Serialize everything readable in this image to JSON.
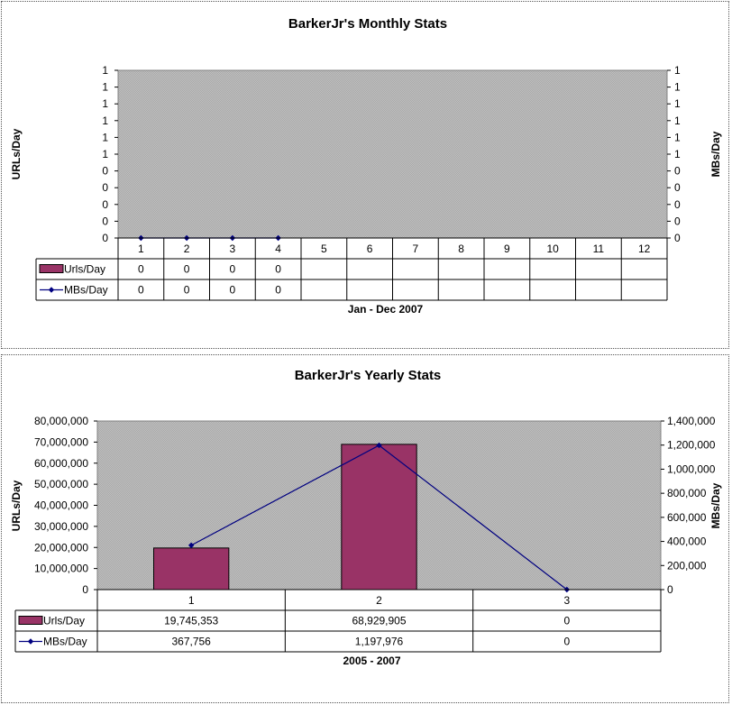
{
  "charts": [
    {
      "id": "monthly",
      "chart_data": {
        "type": "bar",
        "title": "BarkerJr's Monthly Stats",
        "xlabel": "Jan - Dec 2007",
        "ylabel_left": "URLs/Day",
        "ylabel_right": "MBs/Day",
        "categories": [
          "1",
          "2",
          "3",
          "4",
          "5",
          "6",
          "7",
          "8",
          "9",
          "10",
          "11",
          "12"
        ],
        "y_left_ticks": [
          "0",
          "0",
          "0",
          "0",
          "0",
          "1",
          "1",
          "1",
          "1",
          "1",
          "1"
        ],
        "y_right_ticks": [
          "0",
          "0",
          "0",
          "0",
          "0",
          "1",
          "1",
          "1",
          "1",
          "1",
          "1"
        ],
        "ylim_left": [
          0,
          1
        ],
        "ylim_right": [
          0,
          1
        ],
        "grid": false,
        "legend": "table-left",
        "series": [
          {
            "name": "Urls/Day",
            "type": "bar",
            "axis": "left",
            "color": "#993366",
            "values": [
              0,
              0,
              0,
              0,
              null,
              null,
              null,
              null,
              null,
              null,
              null,
              null
            ],
            "labels": [
              "0",
              "0",
              "0",
              "0",
              "",
              "",
              "",
              "",
              "",
              "",
              "",
              ""
            ]
          },
          {
            "name": "MBs/Day",
            "type": "line",
            "axis": "right",
            "color": "#000080",
            "values": [
              0,
              0,
              0,
              0,
              null,
              null,
              null,
              null,
              null,
              null,
              null,
              null
            ],
            "labels": [
              "0",
              "0",
              "0",
              "0",
              "",
              "",
              "",
              "",
              "",
              "",
              "",
              ""
            ]
          }
        ]
      }
    },
    {
      "id": "yearly",
      "chart_data": {
        "type": "bar",
        "title": "BarkerJr's Yearly Stats",
        "xlabel": "2005 - 2007",
        "ylabel_left": "URLs/Day",
        "ylabel_right": "MBs/Day",
        "categories": [
          "1",
          "2",
          "3"
        ],
        "y_left_ticks": [
          "0",
          "10,000,000",
          "20,000,000",
          "30,000,000",
          "40,000,000",
          "50,000,000",
          "60,000,000",
          "70,000,000",
          "80,000,000"
        ],
        "y_right_ticks": [
          "0",
          "200,000",
          "400,000",
          "600,000",
          "800,000",
          "1,000,000",
          "1,200,000",
          "1,400,000"
        ],
        "ylim_left": [
          0,
          80000000
        ],
        "ylim_right": [
          0,
          1400000
        ],
        "grid": false,
        "legend": "table-left",
        "series": [
          {
            "name": "Urls/Day",
            "type": "bar",
            "axis": "left",
            "color": "#993366",
            "values": [
              19745353,
              68929905,
              0
            ],
            "labels": [
              "19,745,353",
              "68,929,905",
              "0"
            ]
          },
          {
            "name": "MBs/Day",
            "type": "line",
            "axis": "right",
            "color": "#000080",
            "values": [
              367756,
              1197976,
              0
            ],
            "labels": [
              "367,756",
              "1,197,976",
              "0"
            ]
          }
        ]
      }
    }
  ],
  "colors": {
    "plot_background": "#c0c0c0",
    "bar": "#993366",
    "line": "#000080"
  }
}
